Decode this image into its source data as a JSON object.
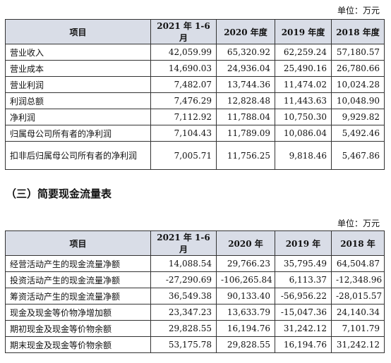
{
  "table1": {
    "unit": "单位：万元",
    "headers": [
      "项目",
      "2021 年 1-6 月",
      "2020 年度",
      "2019 年度",
      "2018 年度"
    ],
    "rows": [
      [
        "营业收入",
        "42,059.99",
        "65,320.92",
        "62,259.24",
        "57,180.57"
      ],
      [
        "营业成本",
        "14,690.03",
        "24,936.04",
        "25,490.16",
        "26,780.66"
      ],
      [
        "营业利润",
        "7,482.07",
        "13,744.36",
        "11,474.02",
        "10,024.28"
      ],
      [
        "利润总额",
        "7,476.29",
        "12,828.48",
        "11,443.63",
        "10,048.90"
      ],
      [
        "净利润",
        "7,112.92",
        "11,788.04",
        "10,750.30",
        "9,929.82"
      ],
      [
        "归属母公司所有者的净利润",
        "7,104.43",
        "11,789.09",
        "10,086.04",
        "5,492.46"
      ],
      [
        "扣非后归属母公司所有者的净利润",
        "7,005.71",
        "11,756.25",
        "9,818.46",
        "5,467.86"
      ]
    ]
  },
  "section2": {
    "title": "（三）简要现金流量表"
  },
  "table2": {
    "unit": "单位：万元",
    "headers": [
      "项目",
      "2021 年 1-6 月",
      "2020 年",
      "2019 年",
      "2018 年"
    ],
    "rows": [
      [
        "经营活动产生的现金流量净额",
        "14,088.54",
        "29,766.23",
        "35,795.49",
        "64,504.87"
      ],
      [
        "投资活动产生的现金流量净额",
        "-27,290.69",
        "-106,265.84",
        "6,113.37",
        "-12,348.96"
      ],
      [
        "筹资活动产生的现金流量净额",
        "36,549.38",
        "90,133.40",
        "-56,956.22",
        "-28,015.57"
      ],
      [
        "现金及现金等价物净增加额",
        "23,347.23",
        "13,633.79",
        "-15,047.36",
        "24,140.34"
      ],
      [
        "期初现金及现金等价物余额",
        "29,828.55",
        "16,194.76",
        "31,242.12",
        "7,101.79"
      ],
      [
        "期末现金及现金等价物余额",
        "53,175.78",
        "29,828.55",
        "16,194.76",
        "31,242.12"
      ]
    ]
  }
}
